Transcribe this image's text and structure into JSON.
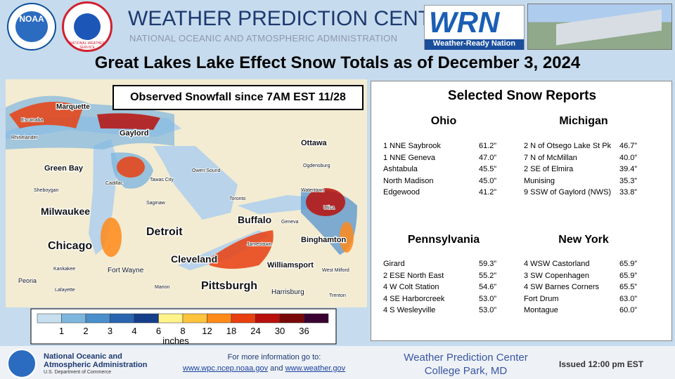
{
  "header": {
    "title": "WEATHER PREDICTION CENTER",
    "subtitle": "NATIONAL OCEANIC AND ATMOSPHERIC ADMINISTRATION",
    "noaa_logo": "NOAA",
    "nws_logo": "NATIONAL WEATHER SERVICE",
    "wrn_logo": "WRN",
    "wrn_caption": "Weather-Ready Nation"
  },
  "title": "Great Lakes Lake Effect Snow Totals as of December 3, 2024",
  "map": {
    "caption": "Observed Snowfall since 7AM EST 11/28",
    "cities": [
      "Marquette",
      "Escanaba",
      "Rhinelander",
      "Green Bay",
      "Sheboygan",
      "Milwaukee",
      "Chicago",
      "Kankakee",
      "Lafayette",
      "Peoria",
      "Fort Wayne",
      "Marion",
      "Gaylord",
      "Cadillac",
      "Tawas City",
      "Saginaw",
      "Detroit",
      "Owen Sound",
      "Toronto",
      "Ottawa",
      "Ogdensburg",
      "Watertown",
      "Utica",
      "Buffalo",
      "Geneva",
      "Jamestown",
      "Binghamton",
      "Cleveland",
      "Pittsburgh",
      "Williamsport",
      "Harrisburg",
      "West Milford",
      "Trenton"
    ]
  },
  "legend": {
    "labels": [
      1,
      2,
      3,
      4,
      6,
      8,
      12,
      18,
      24,
      30,
      36
    ],
    "colors": [
      "#c8dff0",
      "#7fb6de",
      "#4a8fcc",
      "#2a66b0",
      "#153f8a",
      "#fff38a",
      "#ffc43d",
      "#ff8a1a",
      "#e84010",
      "#b8100c",
      "#7a0808",
      "#3a0230"
    ],
    "unit": "inches"
  },
  "reports": {
    "title": "Selected Snow Reports",
    "states": [
      {
        "name": "Ohio",
        "rows": [
          [
            "1 NNE Saybrook",
            "61.2”"
          ],
          [
            "1 NNE Geneva",
            "47.0”"
          ],
          [
            "Ashtabula",
            "45.5”"
          ],
          [
            "North Madison",
            "45.0”"
          ],
          [
            "Edgewood",
            "41.2”"
          ]
        ]
      },
      {
        "name": "Michigan",
        "rows": [
          [
            "2 N of Otsego Lake St  Pk",
            "46.7”"
          ],
          [
            "7 N of McMillan",
            "40.0”"
          ],
          [
            "2 SE of Elmira",
            "39.4”"
          ],
          [
            "Munising",
            "35.3”"
          ],
          [
            "9 SSW of Gaylord (NWS)",
            "33.8”"
          ]
        ]
      },
      {
        "name": "Pennsylvania",
        "rows": [
          [
            "Girard",
            "59.3”"
          ],
          [
            "2 ESE North East",
            "55.2”"
          ],
          [
            "4 W Colt Station",
            "54.6”"
          ],
          [
            "4 SE Harborcreek",
            "53.0”"
          ],
          [
            "4 S Wesleyville",
            "53.0”"
          ]
        ]
      },
      {
        "name": "New York",
        "rows": [
          [
            "4 WSW Castorland",
            "65.9”"
          ],
          [
            "3 SW Copenhagen",
            "65.9”"
          ],
          [
            "4 SW Barnes Corners",
            "65.5”"
          ],
          [
            "Fort Drum",
            "63.0”"
          ],
          [
            "Montague",
            "60.0”"
          ]
        ]
      }
    ]
  },
  "footer": {
    "agency": "National Oceanic and",
    "agency2": "Atmospheric Administration",
    "dept": "U.S. Department of Commerce",
    "info": "For more information go to:",
    "link1": "www.wpc.ncep.noaa.gov",
    "and": "and",
    "link2": "www.weather.gov",
    "office": "Weather Prediction Center",
    "location": "College Park, MD",
    "issued": "Issued 12:00 pm EST"
  }
}
